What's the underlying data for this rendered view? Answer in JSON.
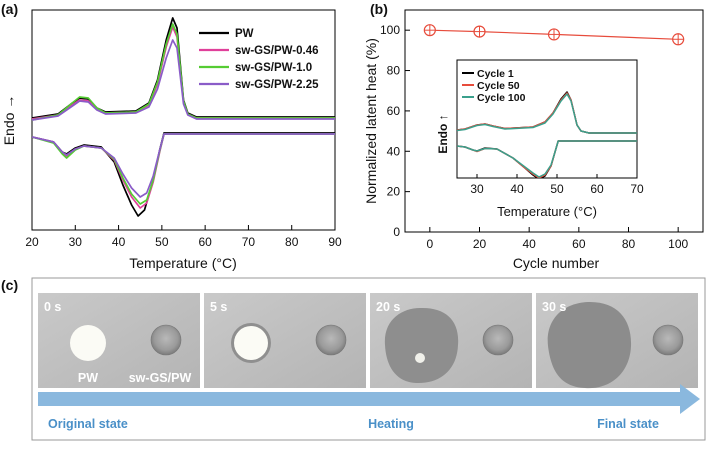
{
  "panel_labels": {
    "a": "(a)",
    "b": "(b)",
    "c": "(c)"
  },
  "chart_data": [
    {
      "id": "dsc",
      "type": "line",
      "xlabel": "Temperature (°C)",
      "ylabel": "Endo →",
      "xlim": [
        20,
        90
      ],
      "xticks": [
        20,
        30,
        40,
        50,
        60,
        70,
        80,
        90
      ],
      "legend": "top-right",
      "series": [
        {
          "name": "PW",
          "color": "#000000",
          "heating": [
            [
              20,
              118.0
            ],
            [
              26,
              114.0
            ],
            [
              29,
              104.0
            ],
            [
              31,
              98.0
            ],
            [
              33,
              99.0
            ],
            [
              35,
              108.0
            ],
            [
              37,
              112.0
            ],
            [
              44,
              111.0
            ],
            [
              47,
              103.0
            ],
            [
              49,
              80.0
            ],
            [
              51,
              40.0
            ],
            [
              52.5,
              18.0
            ],
            [
              53.5,
              28.0
            ],
            [
              55,
              100.0
            ],
            [
              56,
              113.0
            ],
            [
              58,
              117.0
            ],
            [
              90,
              117.0
            ]
          ],
          "cooling": [
            [
              20,
              137.0
            ],
            [
              25,
              142.0
            ],
            [
              27,
              152.0
            ],
            [
              28,
              154.0
            ],
            [
              30,
              148.0
            ],
            [
              32,
              145.0
            ],
            [
              36,
              147.0
            ],
            [
              39,
              162.0
            ],
            [
              41,
              185.0
            ],
            [
              43,
              205.0
            ],
            [
              44.5,
              216.0
            ],
            [
              46,
              210.0
            ],
            [
              48,
              180.0
            ],
            [
              49.5,
              150.0
            ],
            [
              50.5,
              133.0
            ],
            [
              90,
              133.0
            ]
          ]
        },
        {
          "name": "sw-GS/PW-0.46",
          "color": "#e0409a",
          "heating": [
            [
              20,
              119.0
            ],
            [
              26,
              115.0
            ],
            [
              29,
              106.0
            ],
            [
              31,
              100.0
            ],
            [
              33,
              101.0
            ],
            [
              35,
              109.0
            ],
            [
              37,
              113.0
            ],
            [
              44,
              112.0
            ],
            [
              47,
              105.0
            ],
            [
              49,
              84.0
            ],
            [
              51,
              47.0
            ],
            [
              52.5,
              27.0
            ],
            [
              53.5,
              37.0
            ],
            [
              55,
              102.0
            ],
            [
              56,
              114.0
            ],
            [
              58,
              118.0
            ],
            [
              90,
              118.0
            ]
          ],
          "cooling": [
            [
              20,
              137.0
            ],
            [
              25,
              142.0
            ],
            [
              27,
              153.0
            ],
            [
              28,
              156.0
            ],
            [
              30,
              149.0
            ],
            [
              32,
              146.0
            ],
            [
              36,
              148.0
            ],
            [
              39,
              160.0
            ],
            [
              41,
              180.0
            ],
            [
              43,
              197.0
            ],
            [
              45,
              208.0
            ],
            [
              46.5,
              203.0
            ],
            [
              48,
              182.0
            ],
            [
              49.5,
              152.0
            ],
            [
              50.5,
              134.0
            ],
            [
              90,
              134.0
            ]
          ]
        },
        {
          "name": "sw-GS/PW-1.0",
          "color": "#55cc33",
          "heating": [
            [
              20,
              120.0
            ],
            [
              26,
              115.0
            ],
            [
              29,
              104.0
            ],
            [
              31,
              97.0
            ],
            [
              33,
              98.0
            ],
            [
              35,
              108.0
            ],
            [
              37,
              113.0
            ],
            [
              44,
              112.0
            ],
            [
              47,
              104.0
            ],
            [
              49,
              82.0
            ],
            [
              51,
              44.0
            ],
            [
              52.5,
              24.0
            ],
            [
              53.5,
              34.0
            ],
            [
              55,
              101.0
            ],
            [
              56,
              114.0
            ],
            [
              58,
              118.0
            ],
            [
              90,
              118.0
            ]
          ],
          "cooling": [
            [
              20,
              137.0
            ],
            [
              25,
              143.0
            ],
            [
              27,
              154.0
            ],
            [
              28,
              158.0
            ],
            [
              30,
              150.0
            ],
            [
              32,
              146.0
            ],
            [
              36,
              148.0
            ],
            [
              39,
              159.0
            ],
            [
              41,
              178.0
            ],
            [
              43,
              194.0
            ],
            [
              45,
              204.0
            ],
            [
              46.5,
              200.0
            ],
            [
              48,
              180.0
            ],
            [
              49.5,
              151.0
            ],
            [
              50.5,
              134.0
            ],
            [
              90,
              134.0
            ]
          ]
        },
        {
          "name": "sw-GS/PW-2.25",
          "color": "#8a5cc8",
          "heating": [
            [
              20,
              120.0
            ],
            [
              26,
              116.0
            ],
            [
              29,
              107.0
            ],
            [
              31,
              101.0
            ],
            [
              33,
              102.0
            ],
            [
              35,
              110.0
            ],
            [
              37,
              114.0
            ],
            [
              44,
              113.0
            ],
            [
              47,
              107.0
            ],
            [
              49,
              89.0
            ],
            [
              51,
              58.0
            ],
            [
              52.5,
              40.0
            ],
            [
              53.5,
              48.0
            ],
            [
              55,
              104.0
            ],
            [
              56,
              115.0
            ],
            [
              58,
              119.0
            ],
            [
              90,
              119.0
            ]
          ],
          "cooling": [
            [
              20,
              137.0
            ],
            [
              25,
              142.0
            ],
            [
              27,
              152.0
            ],
            [
              28,
              155.0
            ],
            [
              30,
              149.0
            ],
            [
              32,
              146.0
            ],
            [
              36,
              148.0
            ],
            [
              39,
              158.0
            ],
            [
              41,
              174.0
            ],
            [
              43,
              188.0
            ],
            [
              45,
              197.0
            ],
            [
              46.5,
              193.0
            ],
            [
              48,
              176.0
            ],
            [
              49.5,
              150.0
            ],
            [
              50.5,
              134.0
            ],
            [
              90,
              134.0
            ]
          ]
        }
      ]
    },
    {
      "id": "cycles",
      "type": "scatter",
      "xlabel": "Cycle number",
      "ylabel": "Normalized latent heat (%)",
      "xlim": [
        -10,
        110
      ],
      "ylim": [
        0,
        110
      ],
      "xticks": [
        0,
        20,
        40,
        60,
        80,
        100
      ],
      "yticks": [
        0,
        20,
        40,
        60,
        80,
        100
      ],
      "color": "#e74c3c",
      "series": [
        {
          "x": [
            0,
            20,
            50,
            100
          ],
          "values": [
            100.0,
            99.3,
            97.9,
            95.5
          ]
        }
      ]
    },
    {
      "id": "inset",
      "type": "line",
      "xlabel": "Temperature (°C)",
      "ylabel": "Endo ↑",
      "xlim": [
        25,
        70
      ],
      "xticks": [
        30,
        40,
        50,
        60,
        70
      ],
      "legend": "top-left",
      "series": [
        {
          "name": "Cycle 1",
          "color": "#000000",
          "heating": [
            [
              25,
              130.0
            ],
            [
              27,
              129.0
            ],
            [
              30,
              125.0
            ],
            [
              32,
              124.0
            ],
            [
              34,
              126.0
            ],
            [
              37,
              128.5
            ],
            [
              44,
              127.0
            ],
            [
              47,
              122.0
            ],
            [
              49,
              113.0
            ],
            [
              51,
              99.0
            ],
            [
              52.5,
              92.0
            ],
            [
              53.5,
              100.0
            ],
            [
              55,
              125.0
            ],
            [
              56,
              131.0
            ],
            [
              58,
              133.0
            ],
            [
              70,
              133.0
            ]
          ],
          "cooling": [
            [
              25,
              146.0
            ],
            [
              27,
              147.0
            ],
            [
              29,
              150.0
            ],
            [
              30,
              151.0
            ],
            [
              32,
              148.0
            ],
            [
              35,
              149.0
            ],
            [
              39,
              158.0
            ],
            [
              42,
              168.0
            ],
            [
              44,
              175.0
            ],
            [
              45.5,
              179.0
            ],
            [
              47,
              176.0
            ],
            [
              48.5,
              166.0
            ],
            [
              49.5,
              152.0
            ],
            [
              50.3,
              141.0
            ],
            [
              70,
              141.0
            ]
          ]
        },
        {
          "name": "Cycle 50",
          "color": "#e74c3c",
          "heating": [
            [
              25,
              130.0
            ],
            [
              27,
              129.0
            ],
            [
              30,
              125.0
            ],
            [
              32,
              124.0
            ],
            [
              34,
              126.0
            ],
            [
              37,
              128.5
            ],
            [
              44,
              127.0
            ],
            [
              47,
              122.0
            ],
            [
              49,
              113.0
            ],
            [
              51,
              100.0
            ],
            [
              52.5,
              93.0
            ],
            [
              53.5,
              100.0
            ],
            [
              55,
              125.0
            ],
            [
              56,
              131.0
            ],
            [
              58,
              133.0
            ],
            [
              70,
              133.0
            ]
          ],
          "cooling": [
            [
              25,
              146.0
            ],
            [
              27,
              147.0
            ],
            [
              29,
              150.0
            ],
            [
              30,
              151.5
            ],
            [
              32,
              148.5
            ],
            [
              35,
              149.0
            ],
            [
              39,
              158.0
            ],
            [
              42,
              168.0
            ],
            [
              44,
              174.0
            ],
            [
              45.5,
              178.0
            ],
            [
              47,
              175.0
            ],
            [
              48.5,
              166.0
            ],
            [
              49.5,
              152.0
            ],
            [
              50.3,
              141.0
            ],
            [
              70,
              141.0
            ]
          ]
        },
        {
          "name": "Cycle 100",
          "color": "#3aa08c",
          "heating": [
            [
              25,
              130.5
            ],
            [
              27,
              129.5
            ],
            [
              30,
              125.5
            ],
            [
              32,
              124.5
            ],
            [
              34,
              126.5
            ],
            [
              37,
              129.0
            ],
            [
              44,
              127.5
            ],
            [
              47,
              123.0
            ],
            [
              49,
              114.0
            ],
            [
              51,
              101.0
            ],
            [
              52.5,
              94.0
            ],
            [
              53.5,
              101.0
            ],
            [
              55,
              125.0
            ],
            [
              56,
              131.0
            ],
            [
              58,
              133.0
            ],
            [
              70,
              133.0
            ]
          ],
          "cooling": [
            [
              25,
              146.0
            ],
            [
              27,
              147.0
            ],
            [
              29,
              150.0
            ],
            [
              30,
              151.0
            ],
            [
              32,
              148.5
            ],
            [
              35,
              149.0
            ],
            [
              39,
              158.0
            ],
            [
              42,
              167.0
            ],
            [
              44,
              173.0
            ],
            [
              45.5,
              177.0
            ],
            [
              47,
              174.0
            ],
            [
              48.5,
              165.0
            ],
            [
              49.5,
              152.0
            ],
            [
              50.3,
              141.0
            ],
            [
              70,
              141.0
            ]
          ]
        }
      ]
    }
  ],
  "photos": {
    "frames": [
      {
        "time": "0 s",
        "caption_left": "PW",
        "caption_right": "sw-GS/PW",
        "pw_state": "solid"
      },
      {
        "time": "5 s",
        "caption_left": "",
        "caption_right": "",
        "pw_state": "softening"
      },
      {
        "time": "20 s",
        "caption_left": "",
        "caption_right": "",
        "pw_state": "melting"
      },
      {
        "time": "30 s",
        "caption_left": "",
        "caption_right": "",
        "pw_state": "melted"
      }
    ],
    "arrow_labels": {
      "start": "Original state",
      "middle": "Heating",
      "end": "Final state"
    },
    "arrow_color": "#8ab8de"
  }
}
